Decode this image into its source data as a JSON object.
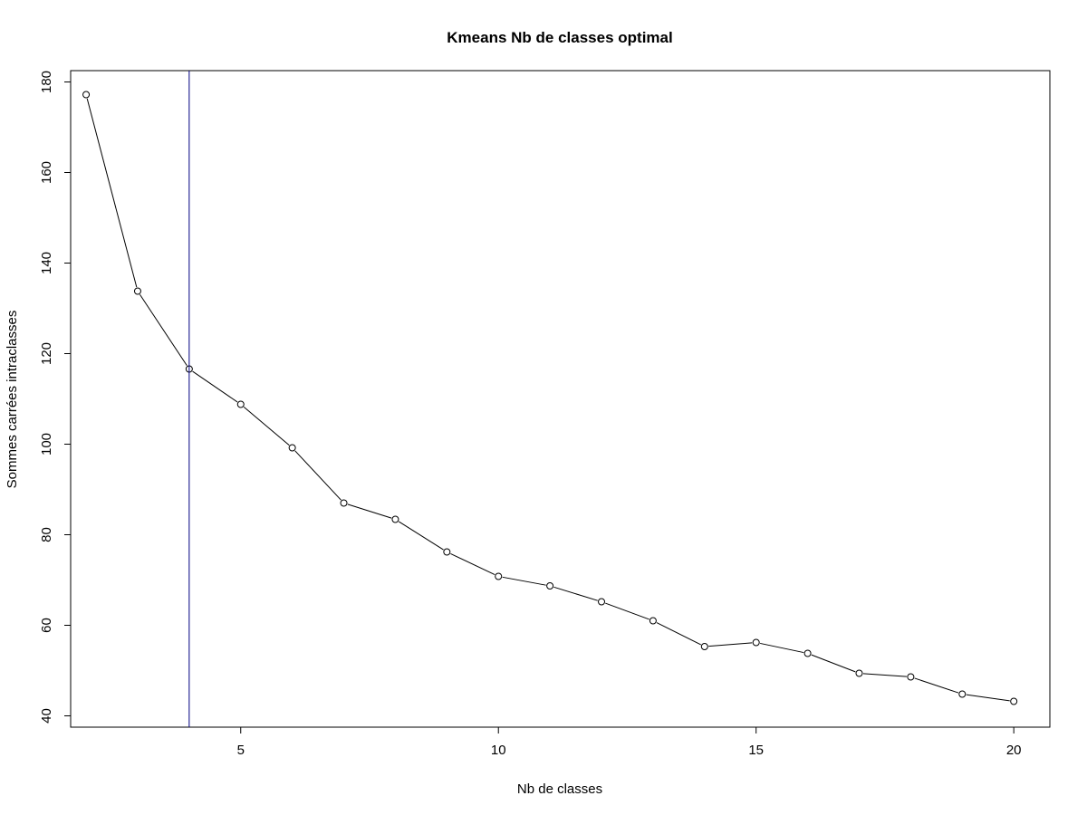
{
  "chart_data": {
    "type": "line",
    "title": "Kmeans Nb de classes optimal",
    "xlabel": "Nb de classes",
    "ylabel": "Sommes carrées intraclasses",
    "xlim": [
      1.7,
      20.7
    ],
    "ylim": [
      37.5,
      182.5
    ],
    "xticks": [
      5,
      10,
      15,
      20
    ],
    "yticks": [
      40,
      60,
      80,
      100,
      120,
      140,
      160,
      180
    ],
    "series": [
      {
        "x": [
          2,
          3,
          4,
          5,
          6,
          7,
          8,
          9,
          10,
          11,
          12,
          13,
          14,
          15,
          16,
          17,
          18,
          19,
          20
        ],
        "values": [
          177.2,
          133.8,
          116.6,
          108.8,
          99.2,
          87.0,
          83.4,
          76.2,
          70.8,
          68.7,
          65.2,
          61.0,
          55.3,
          56.2,
          53.8,
          49.4,
          48.6,
          44.8,
          43.2
        ],
        "color": "#000000"
      }
    ],
    "vline": {
      "x": 4,
      "color": "#000080"
    },
    "grid": false,
    "markers": "open-circle"
  }
}
